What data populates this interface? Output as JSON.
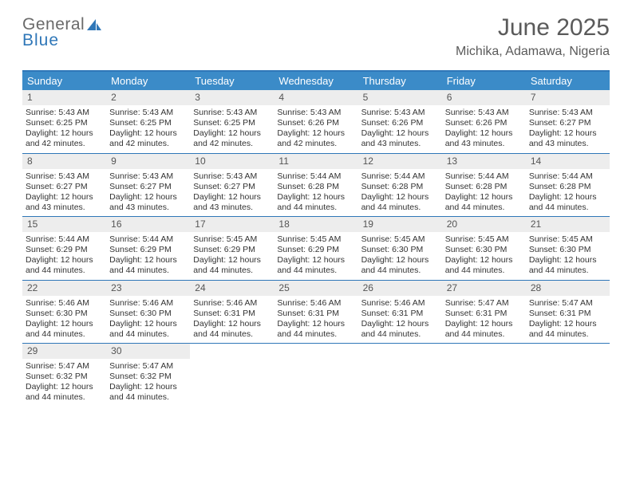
{
  "logo": {
    "line1": "General",
    "line2": "Blue"
  },
  "header": {
    "month_title": "June 2025",
    "location": "Michika, Adamawa, Nigeria"
  },
  "colors": {
    "brand_blue": "#3b8bc8",
    "rule_blue": "#2f77b8",
    "header_gray": "#ededed",
    "text": "#333333",
    "title_gray": "#5a5a5a"
  },
  "weekdays": [
    "Sunday",
    "Monday",
    "Tuesday",
    "Wednesday",
    "Thursday",
    "Friday",
    "Saturday"
  ],
  "weeks": [
    [
      {
        "n": "1",
        "sr": "5:43 AM",
        "ss": "6:25 PM",
        "dl": "12 hours and 42 minutes."
      },
      {
        "n": "2",
        "sr": "5:43 AM",
        "ss": "6:25 PM",
        "dl": "12 hours and 42 minutes."
      },
      {
        "n": "3",
        "sr": "5:43 AM",
        "ss": "6:25 PM",
        "dl": "12 hours and 42 minutes."
      },
      {
        "n": "4",
        "sr": "5:43 AM",
        "ss": "6:26 PM",
        "dl": "12 hours and 42 minutes."
      },
      {
        "n": "5",
        "sr": "5:43 AM",
        "ss": "6:26 PM",
        "dl": "12 hours and 43 minutes."
      },
      {
        "n": "6",
        "sr": "5:43 AM",
        "ss": "6:26 PM",
        "dl": "12 hours and 43 minutes."
      },
      {
        "n": "7",
        "sr": "5:43 AM",
        "ss": "6:27 PM",
        "dl": "12 hours and 43 minutes."
      }
    ],
    [
      {
        "n": "8",
        "sr": "5:43 AM",
        "ss": "6:27 PM",
        "dl": "12 hours and 43 minutes."
      },
      {
        "n": "9",
        "sr": "5:43 AM",
        "ss": "6:27 PM",
        "dl": "12 hours and 43 minutes."
      },
      {
        "n": "10",
        "sr": "5:43 AM",
        "ss": "6:27 PM",
        "dl": "12 hours and 43 minutes."
      },
      {
        "n": "11",
        "sr": "5:44 AM",
        "ss": "6:28 PM",
        "dl": "12 hours and 44 minutes."
      },
      {
        "n": "12",
        "sr": "5:44 AM",
        "ss": "6:28 PM",
        "dl": "12 hours and 44 minutes."
      },
      {
        "n": "13",
        "sr": "5:44 AM",
        "ss": "6:28 PM",
        "dl": "12 hours and 44 minutes."
      },
      {
        "n": "14",
        "sr": "5:44 AM",
        "ss": "6:28 PM",
        "dl": "12 hours and 44 minutes."
      }
    ],
    [
      {
        "n": "15",
        "sr": "5:44 AM",
        "ss": "6:29 PM",
        "dl": "12 hours and 44 minutes."
      },
      {
        "n": "16",
        "sr": "5:44 AM",
        "ss": "6:29 PM",
        "dl": "12 hours and 44 minutes."
      },
      {
        "n": "17",
        "sr": "5:45 AM",
        "ss": "6:29 PM",
        "dl": "12 hours and 44 minutes."
      },
      {
        "n": "18",
        "sr": "5:45 AM",
        "ss": "6:29 PM",
        "dl": "12 hours and 44 minutes."
      },
      {
        "n": "19",
        "sr": "5:45 AM",
        "ss": "6:30 PM",
        "dl": "12 hours and 44 minutes."
      },
      {
        "n": "20",
        "sr": "5:45 AM",
        "ss": "6:30 PM",
        "dl": "12 hours and 44 minutes."
      },
      {
        "n": "21",
        "sr": "5:45 AM",
        "ss": "6:30 PM",
        "dl": "12 hours and 44 minutes."
      }
    ],
    [
      {
        "n": "22",
        "sr": "5:46 AM",
        "ss": "6:30 PM",
        "dl": "12 hours and 44 minutes."
      },
      {
        "n": "23",
        "sr": "5:46 AM",
        "ss": "6:30 PM",
        "dl": "12 hours and 44 minutes."
      },
      {
        "n": "24",
        "sr": "5:46 AM",
        "ss": "6:31 PM",
        "dl": "12 hours and 44 minutes."
      },
      {
        "n": "25",
        "sr": "5:46 AM",
        "ss": "6:31 PM",
        "dl": "12 hours and 44 minutes."
      },
      {
        "n": "26",
        "sr": "5:46 AM",
        "ss": "6:31 PM",
        "dl": "12 hours and 44 minutes."
      },
      {
        "n": "27",
        "sr": "5:47 AM",
        "ss": "6:31 PM",
        "dl": "12 hours and 44 minutes."
      },
      {
        "n": "28",
        "sr": "5:47 AM",
        "ss": "6:31 PM",
        "dl": "12 hours and 44 minutes."
      }
    ],
    [
      {
        "n": "29",
        "sr": "5:47 AM",
        "ss": "6:32 PM",
        "dl": "12 hours and 44 minutes."
      },
      {
        "n": "30",
        "sr": "5:47 AM",
        "ss": "6:32 PM",
        "dl": "12 hours and 44 minutes."
      },
      null,
      null,
      null,
      null,
      null
    ]
  ],
  "labels": {
    "sunrise": "Sunrise:",
    "sunset": "Sunset:",
    "daylight": "Daylight:"
  }
}
